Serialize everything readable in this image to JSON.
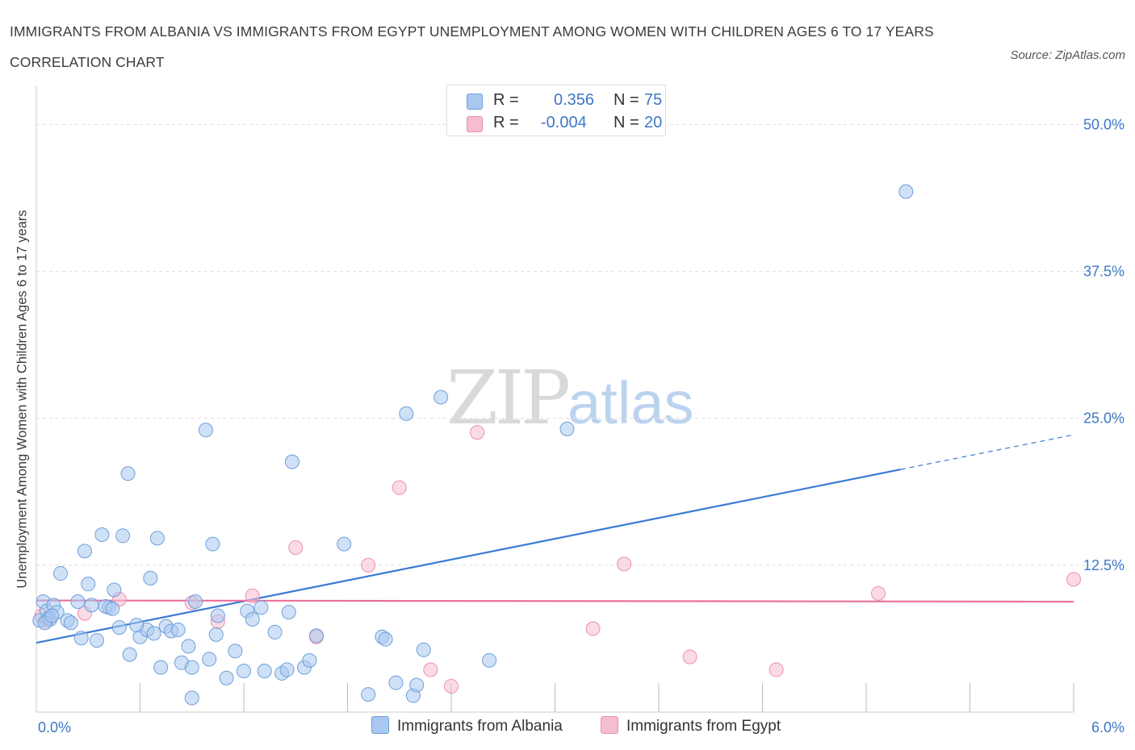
{
  "title": "IMMIGRANTS FROM ALBANIA VS IMMIGRANTS FROM EGYPT UNEMPLOYMENT AMONG WOMEN WITH CHILDREN AGES 6 TO 17 YEARS CORRELATION CHART",
  "source": "Source: ZipAtlas.com",
  "watermark": {
    "zip": "ZIP",
    "atlas": "atlas"
  },
  "legend": {
    "r_label": "R =",
    "n_label": "N =",
    "series": [
      {
        "r": "0.356",
        "n": "75"
      },
      {
        "r": "-0.004",
        "n": "20"
      }
    ]
  },
  "colors": {
    "albania_fill": "#a9c8f0",
    "albania_stroke": "#6f9fd8",
    "albania_line": "#3a7bd5",
    "egypt_fill": "#f6bdd0",
    "egypt_stroke": "#ec8fb0",
    "egypt_line": "#e8709a",
    "axis_text": "#3c78c8"
  },
  "chart_data": {
    "type": "scatter",
    "title": "IMMIGRANTS FROM ALBANIA VS IMMIGRANTS FROM EGYPT UNEMPLOYMENT AMONG WOMEN WITH CHILDREN AGES 6 TO 17 YEARS CORRELATION CHART",
    "xlabel": "",
    "ylabel": "Unemployment Among Women with Children Ages 6 to 17 years",
    "xlim": [
      0,
      6
    ],
    "ylim": [
      0,
      52.5
    ],
    "x_tick_labels": [
      "0.0%",
      "6.0%"
    ],
    "y_ticks": [
      12.5,
      25,
      37.5,
      50
    ],
    "y_tick_labels": [
      "12.5%",
      "25.0%",
      "37.5%",
      "50.0%"
    ],
    "grid": true,
    "series": [
      {
        "name": "Immigrants from Albania",
        "r": 0.356,
        "n": 75,
        "trend": {
          "x0": 0,
          "y0": 5.9,
          "x1": 6,
          "y1": 23.6,
          "solid_until_x": 5.0
        },
        "points": [
          [
            0.02,
            7.8
          ],
          [
            0.04,
            9.4
          ],
          [
            0.06,
            8.6
          ],
          [
            0.07,
            8.0
          ],
          [
            0.08,
            7.9
          ],
          [
            0.1,
            9.1
          ],
          [
            0.12,
            8.5
          ],
          [
            0.14,
            11.8
          ],
          [
            0.18,
            7.8
          ],
          [
            0.2,
            7.6
          ],
          [
            0.24,
            9.4
          ],
          [
            0.26,
            6.3
          ],
          [
            0.28,
            13.7
          ],
          [
            0.3,
            10.9
          ],
          [
            0.32,
            9.1
          ],
          [
            0.35,
            6.1
          ],
          [
            0.38,
            15.1
          ],
          [
            0.42,
            8.9
          ],
          [
            0.45,
            10.4
          ],
          [
            0.48,
            7.2
          ],
          [
            0.5,
            15.0
          ],
          [
            0.53,
            20.3
          ],
          [
            0.54,
            4.9
          ],
          [
            0.6,
            6.4
          ],
          [
            0.64,
            7.0
          ],
          [
            0.66,
            11.4
          ],
          [
            0.68,
            6.7
          ],
          [
            0.7,
            14.8
          ],
          [
            0.72,
            3.8
          ],
          [
            0.75,
            7.3
          ],
          [
            0.78,
            6.9
          ],
          [
            0.82,
            7.0
          ],
          [
            0.84,
            4.2
          ],
          [
            0.88,
            5.6
          ],
          [
            0.9,
            3.8
          ],
          [
            0.9,
            1.2
          ],
          [
            0.92,
            9.4
          ],
          [
            0.98,
            24.0
          ],
          [
            1.0,
            4.5
          ],
          [
            1.02,
            14.3
          ],
          [
            1.04,
            6.6
          ],
          [
            1.1,
            2.9
          ],
          [
            1.15,
            5.2
          ],
          [
            1.2,
            3.5
          ],
          [
            1.22,
            8.6
          ],
          [
            1.3,
            8.9
          ],
          [
            1.32,
            3.5
          ],
          [
            1.38,
            6.8
          ],
          [
            1.42,
            3.3
          ],
          [
            1.45,
            3.6
          ],
          [
            1.46,
            8.5
          ],
          [
            1.48,
            21.3
          ],
          [
            1.55,
            3.8
          ],
          [
            1.58,
            4.4
          ],
          [
            1.62,
            6.5
          ],
          [
            1.78,
            14.3
          ],
          [
            1.92,
            1.5
          ],
          [
            2.0,
            6.4
          ],
          [
            2.02,
            6.2
          ],
          [
            2.08,
            2.5
          ],
          [
            2.14,
            25.4
          ],
          [
            2.18,
            1.4
          ],
          [
            2.2,
            2.3
          ],
          [
            2.24,
            5.3
          ],
          [
            2.34,
            26.8
          ],
          [
            2.62,
            4.4
          ],
          [
            3.07,
            24.1
          ],
          [
            5.03,
            44.3
          ],
          [
            0.05,
            7.6
          ],
          [
            0.09,
            8.2
          ],
          [
            0.4,
            9.0
          ],
          [
            0.58,
            7.4
          ],
          [
            1.05,
            8.2
          ],
          [
            0.44,
            8.8
          ],
          [
            1.25,
            7.9
          ]
        ]
      },
      {
        "name": "Immigrants from Egypt",
        "r": -0.004,
        "n": 20,
        "trend": {
          "x0": 0,
          "y0": 9.5,
          "x1": 6,
          "y1": 9.4
        },
        "points": [
          [
            0.03,
            8.2
          ],
          [
            0.06,
            7.8
          ],
          [
            0.28,
            8.4
          ],
          [
            0.48,
            9.6
          ],
          [
            0.9,
            9.3
          ],
          [
            1.05,
            7.7
          ],
          [
            1.25,
            9.9
          ],
          [
            1.5,
            14.0
          ],
          [
            1.62,
            6.4
          ],
          [
            1.92,
            12.5
          ],
          [
            2.1,
            19.1
          ],
          [
            2.28,
            3.6
          ],
          [
            2.4,
            2.2
          ],
          [
            2.55,
            23.8
          ],
          [
            3.22,
            7.1
          ],
          [
            3.4,
            12.6
          ],
          [
            3.78,
            4.7
          ],
          [
            4.28,
            3.6
          ],
          [
            4.87,
            10.1
          ],
          [
            6.0,
            11.3
          ]
        ]
      }
    ]
  }
}
